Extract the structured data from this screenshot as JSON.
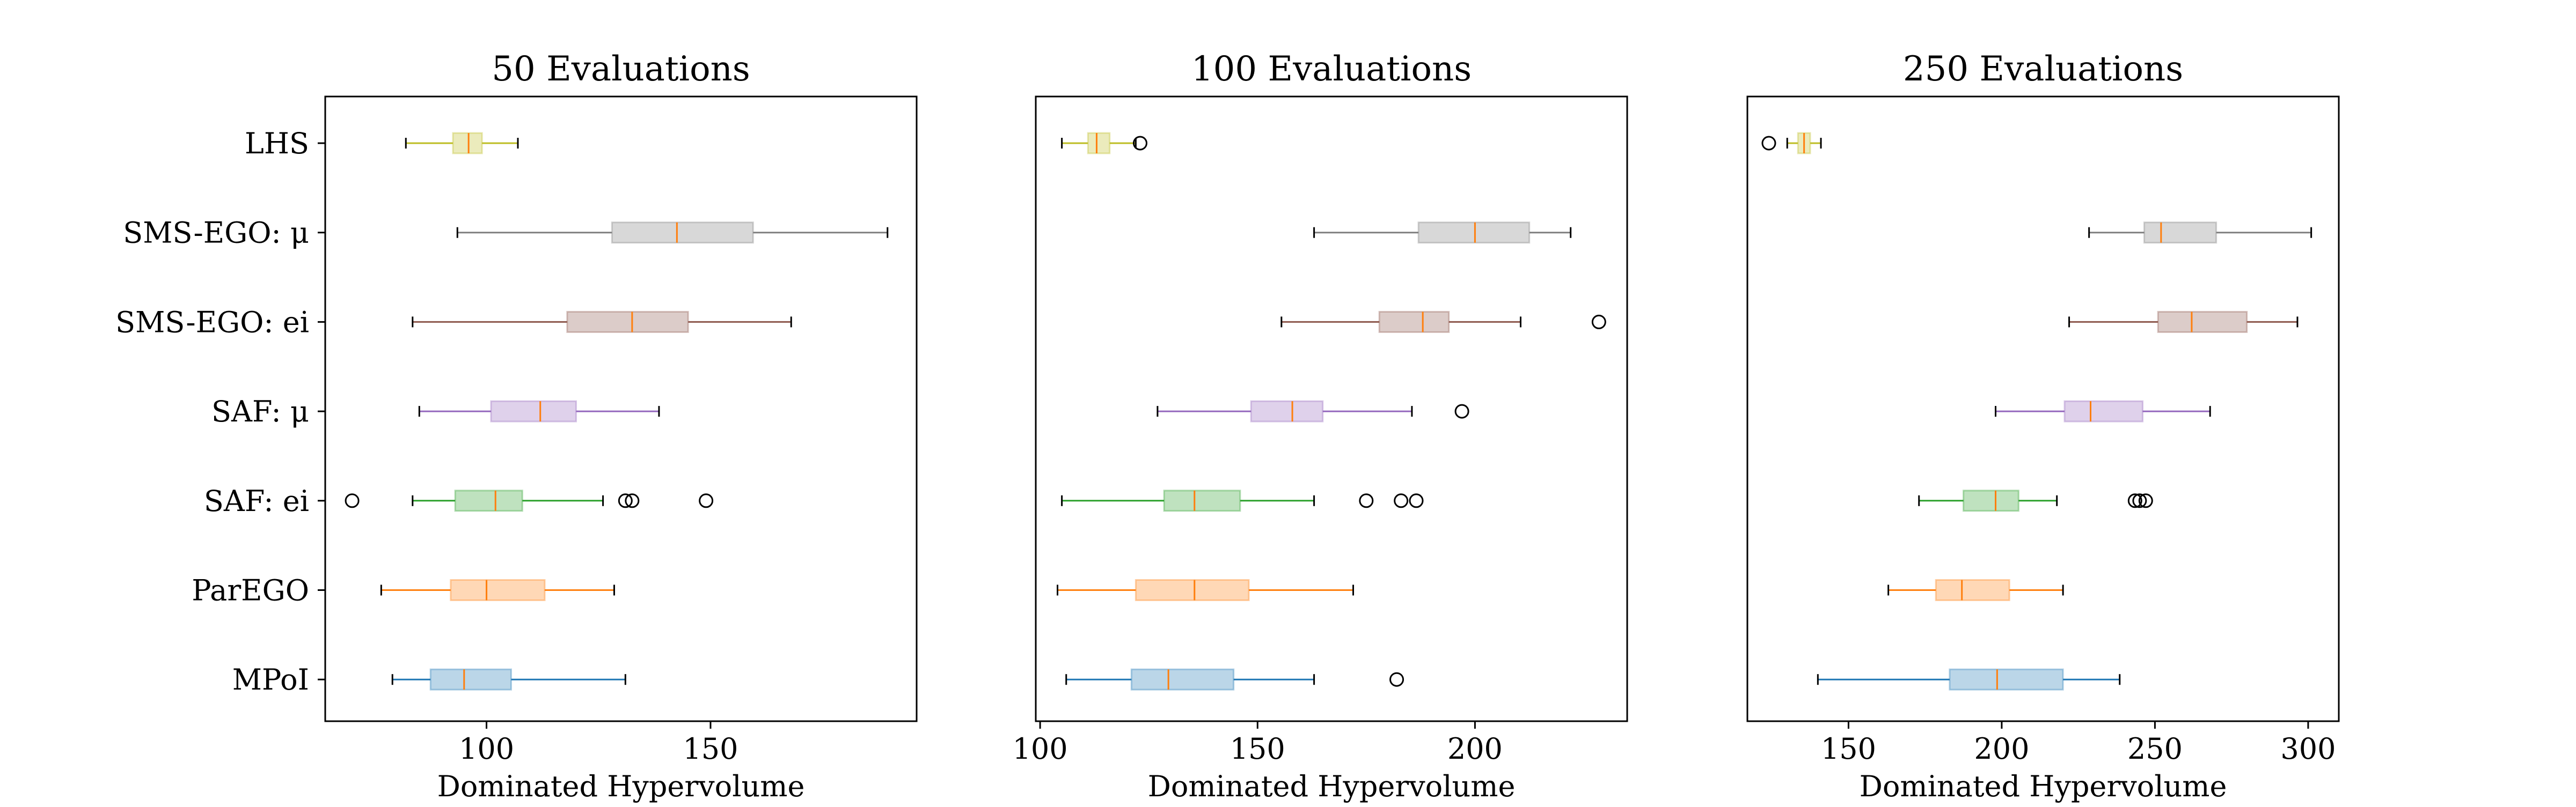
{
  "chart_data": [
    {
      "type": "boxplot",
      "title": "50 Evaluations",
      "xlabel": "Dominated Hypervolume",
      "xlim": [
        64,
        196
      ],
      "xticks": [
        100,
        150
      ],
      "categories": [
        "LHS",
        "SMS-EGO: μ",
        "SMS-EGO: ei",
        "SAF: μ",
        "SAF: ei",
        "ParEGO",
        "MPoI"
      ],
      "boxes": [
        {
          "whislo": 82,
          "q1": 92.5,
          "med": 96,
          "q3": 99,
          "whishi": 107,
          "fliers": []
        },
        {
          "whislo": 93.5,
          "q1": 128,
          "med": 142.5,
          "q3": 159.5,
          "whishi": 189.5,
          "fliers": []
        },
        {
          "whislo": 83.5,
          "q1": 118,
          "med": 132.5,
          "q3": 145,
          "whishi": 168,
          "fliers": []
        },
        {
          "whislo": 85,
          "q1": 101,
          "med": 112,
          "q3": 120,
          "whishi": 138.5,
          "fliers": []
        },
        {
          "whislo": 83.5,
          "q1": 93,
          "med": 102,
          "q3": 108,
          "whishi": 126,
          "fliers": [
            70,
            131,
            132.5,
            149
          ]
        },
        {
          "whislo": 76.5,
          "q1": 92,
          "med": 100,
          "q3": 113,
          "whishi": 128.5,
          "fliers": []
        },
        {
          "whislo": 79,
          "q1": 87.5,
          "med": 95,
          "q3": 105.5,
          "whishi": 131,
          "fliers": []
        }
      ]
    },
    {
      "type": "boxplot",
      "title": "100 Evaluations",
      "xlabel": "Dominated Hypervolume",
      "xlim": [
        99,
        235
      ],
      "xticks": [
        100,
        150,
        200
      ],
      "categories": [
        "LHS",
        "SMS-EGO: μ",
        "SMS-EGO: ei",
        "SAF: μ",
        "SAF: ei",
        "ParEGO",
        "MPoI"
      ],
      "boxes": [
        {
          "whislo": 105,
          "q1": 111,
          "med": 113,
          "q3": 116,
          "whishi": 122,
          "fliers": [
            123
          ]
        },
        {
          "whislo": 163,
          "q1": 187,
          "med": 200,
          "q3": 212.5,
          "whishi": 222,
          "fliers": []
        },
        {
          "whislo": 155.5,
          "q1": 178,
          "med": 188,
          "q3": 194,
          "whishi": 210.5,
          "fliers": [
            228.5
          ]
        },
        {
          "whislo": 127,
          "q1": 148.5,
          "med": 158,
          "q3": 165,
          "whishi": 185.5,
          "fliers": [
            197
          ]
        },
        {
          "whislo": 105,
          "q1": 128.5,
          "med": 135.5,
          "q3": 146,
          "whishi": 163,
          "fliers": [
            175,
            183,
            186.5
          ]
        },
        {
          "whislo": 104,
          "q1": 122,
          "med": 135.5,
          "q3": 148,
          "whishi": 172,
          "fliers": []
        },
        {
          "whislo": 106,
          "q1": 121,
          "med": 129.5,
          "q3": 144.5,
          "whishi": 163,
          "fliers": [
            182
          ]
        }
      ]
    },
    {
      "type": "boxplot",
      "title": "250 Evaluations",
      "xlabel": "Dominated Hypervolume",
      "xlim": [
        117,
        310
      ],
      "xticks": [
        150,
        200,
        250,
        300
      ],
      "categories": [
        "LHS",
        "SMS-EGO: μ",
        "SMS-EGO: ei",
        "SAF: μ",
        "SAF: ei",
        "ParEGO",
        "MPoI"
      ],
      "boxes": [
        {
          "whislo": 130,
          "q1": 133.5,
          "med": 135.5,
          "q3": 137.5,
          "whishi": 141,
          "fliers": [
            124
          ]
        },
        {
          "whislo": 228.5,
          "q1": 246.5,
          "med": 252,
          "q3": 270,
          "whishi": 301,
          "fliers": []
        },
        {
          "whislo": 222,
          "q1": 251,
          "med": 262,
          "q3": 280,
          "whishi": 296.5,
          "fliers": []
        },
        {
          "whislo": 198,
          "q1": 220.5,
          "med": 229,
          "q3": 246,
          "whishi": 268,
          "fliers": []
        },
        {
          "whislo": 173,
          "q1": 187.5,
          "med": 198,
          "q3": 205.5,
          "whishi": 218,
          "fliers": [
            243.5,
            245,
            247
          ]
        },
        {
          "whislo": 163,
          "q1": 178.5,
          "med": 187,
          "q3": 202.5,
          "whishi": 220,
          "fliers": []
        },
        {
          "whislo": 140,
          "q1": 183,
          "med": 198.5,
          "q3": 220,
          "whishi": 238.5,
          "fliers": []
        }
      ]
    }
  ],
  "colors": {
    "series": [
      "#bcbd22",
      "#7f7f7f",
      "#8c564b",
      "#9467bd",
      "#2ca02c",
      "#ff7f0e",
      "#1f77b4"
    ],
    "median": "#ff7f0e",
    "axes": "#000000"
  }
}
